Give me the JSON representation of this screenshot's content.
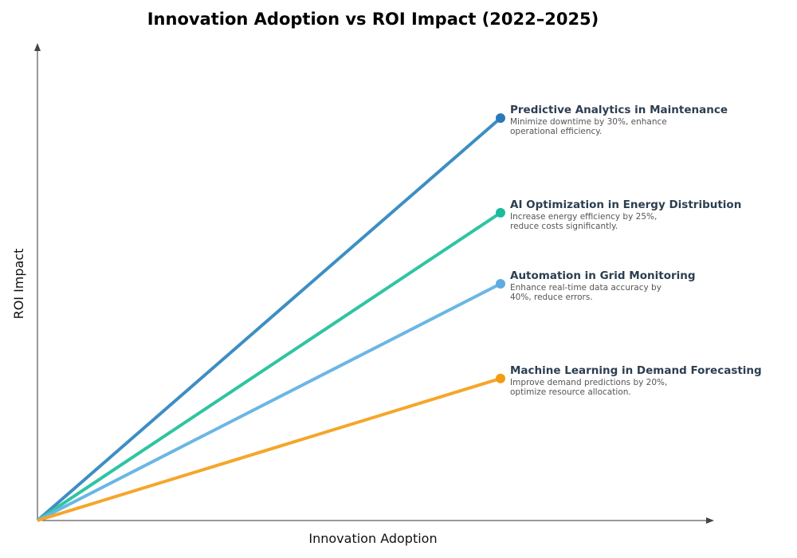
{
  "chart_data": {
    "type": "line",
    "title": "Innovation Adoption vs ROI Impact (2022–2025)",
    "xlabel": "Innovation Adoption",
    "ylabel": "ROI Impact",
    "xlim": [
      0,
      1
    ],
    "ylim": [
      0,
      1
    ],
    "grid": false,
    "ticks": false,
    "series": [
      {
        "name": "Predictive Analytics in Maintenance",
        "description": [
          "Minimize downtime by 30%, enhance",
          "operational efficiency."
        ],
        "color": "#2a7ab8",
        "line_color": "#3d8ec3",
        "x": [
          0,
          0.7
        ],
        "y": [
          0,
          0.85
        ]
      },
      {
        "name": "AI Optimization in Energy Distribution",
        "description": [
          "Increase energy efficiency by 25%,",
          "reduce costs significantly."
        ],
        "color": "#1abc9c",
        "line_color": "#2fc4a2",
        "x": [
          0,
          0.7
        ],
        "y": [
          0,
          0.65
        ]
      },
      {
        "name": "Automation in Grid Monitoring",
        "description": [
          "Enhance real-time data accuracy by",
          "40%, reduce errors."
        ],
        "color": "#5dade2",
        "line_color": "#6bb6e5",
        "x": [
          0,
          0.7
        ],
        "y": [
          0,
          0.5
        ]
      },
      {
        "name": "Machine Learning in Demand Forecasting",
        "description": [
          "Improve demand predictions by 20%,",
          "optimize resource allocation."
        ],
        "color": "#f39c12",
        "line_color": "#f5a62a",
        "x": [
          0,
          0.7
        ],
        "y": [
          0,
          0.3
        ]
      }
    ]
  }
}
